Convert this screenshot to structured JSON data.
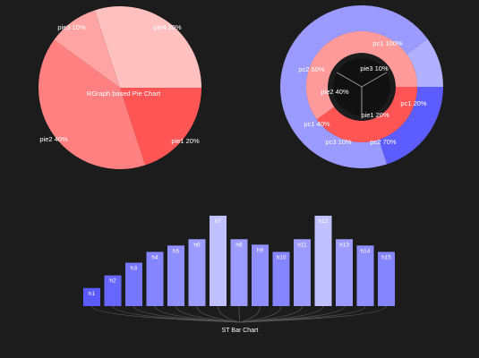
{
  "chart_data": [
    {
      "type": "pie",
      "title": "RGraph based Pie Chart",
      "slices": [
        {
          "label": "pie1 20%",
          "value": 20,
          "color": "#ff5555"
        },
        {
          "label": "pie2 40%",
          "value": 40,
          "color": "#ff8080"
        },
        {
          "label": "pie3 10%",
          "value": 10,
          "color": "#ffa3a3"
        },
        {
          "label": "pie4 30%",
          "value": 30,
          "color": "#ffc0c0"
        }
      ]
    },
    {
      "type": "pie",
      "style": "nested-donut",
      "rings": [
        {
          "name": "outer",
          "slices": [
            {
              "label": "pc1 20%",
              "value": 20,
              "color": "#5c5cff"
            },
            {
              "label": "pc2 70%",
              "value": 70,
              "color": "#9a9aff"
            },
            {
              "label": "pc3 10%",
              "value": 10,
              "color": "#b0b0ff"
            }
          ]
        },
        {
          "name": "middle",
          "slices": [
            {
              "label": "pc1 40%",
              "value": 40,
              "color": "#ff5555"
            },
            {
              "label": "pc2 60%",
              "value": 60,
              "color": "#ff9a9a"
            }
          ]
        },
        {
          "name": "inner",
          "slices": [
            {
              "label": "pc1 100%",
              "value": 100,
              "color": "#ff9a9a"
            }
          ]
        }
      ],
      "center_labels": [
        {
          "label": "pie1 20%",
          "value": 20
        },
        {
          "label": "pie2 40%",
          "value": 40
        },
        {
          "label": "pie3 10%",
          "value": 10
        }
      ]
    },
    {
      "type": "bar",
      "title": "ST Bar Chart",
      "categories": [
        "h1",
        "h2",
        "h3",
        "h4",
        "h5",
        "h6",
        "h7",
        "h8",
        "h9",
        "h10",
        "h11",
        "h12",
        "h13",
        "h14",
        "h15"
      ],
      "values": [
        2,
        3.4,
        4.8,
        6,
        6.7,
        7.4,
        10,
        7.4,
        6.8,
        6,
        7.4,
        10,
        7.4,
        6.7,
        6
      ],
      "colors": [
        "#5a5aff",
        "#6767ff",
        "#7676ff",
        "#8585ff",
        "#8f8fff",
        "#9c9cff",
        "#c0c0ff",
        "#9c9cff",
        "#8f8fff",
        "#8585ff",
        "#9c9cff",
        "#c0c0ff",
        "#9c9cff",
        "#8f8fff",
        "#8585ff"
      ],
      "ylim": [
        0,
        10
      ]
    }
  ]
}
